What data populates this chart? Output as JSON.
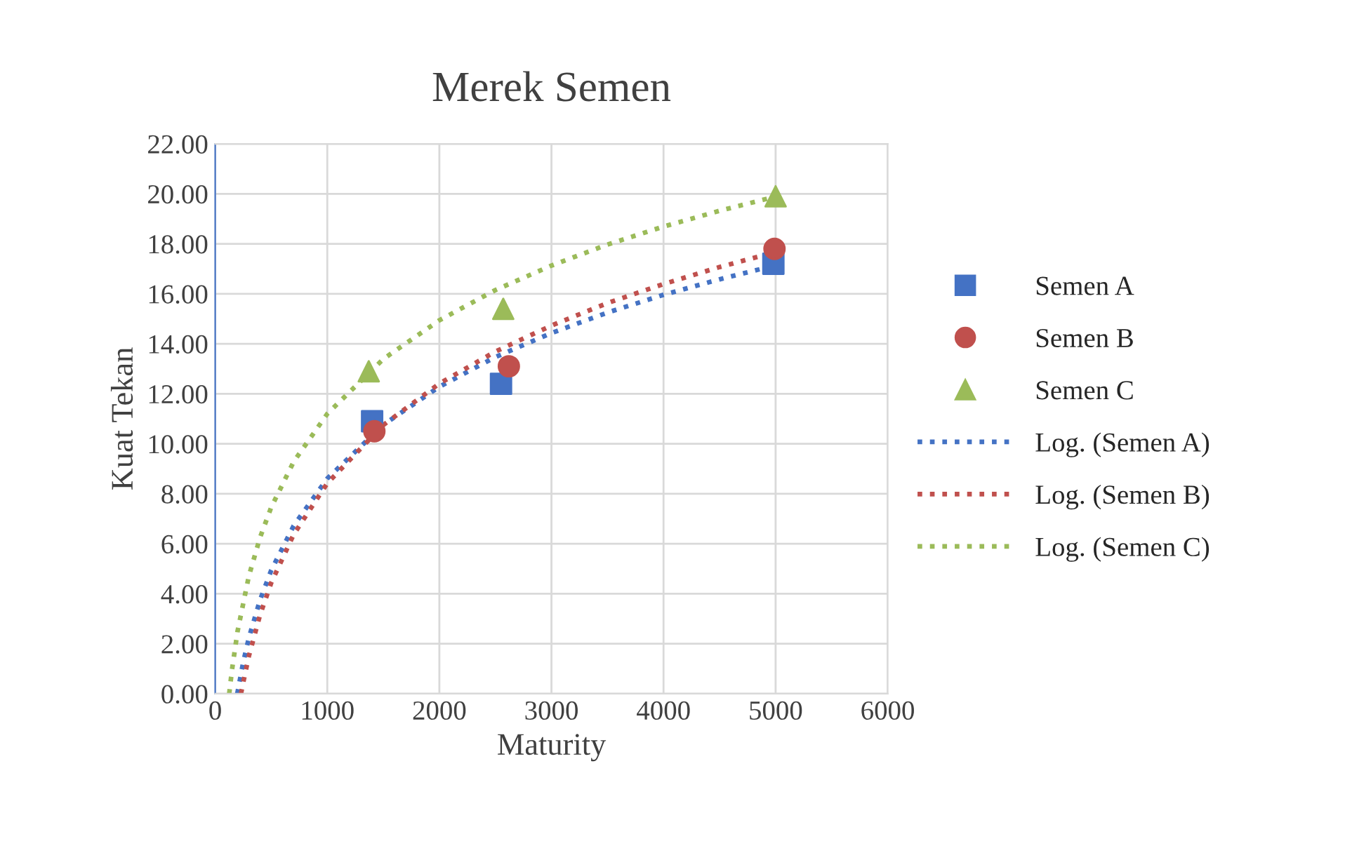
{
  "chart_data": {
    "type": "scatter",
    "title": "Merek Semen",
    "xlabel": "Maturity",
    "ylabel": "Kuat Tekan",
    "xlim": [
      0,
      6000
    ],
    "xticks": [
      0,
      1000,
      2000,
      3000,
      4000,
      5000,
      6000
    ],
    "ylim": [
      0,
      22
    ],
    "yticks": [
      {
        "value": 0,
        "label": "0.00"
      },
      {
        "value": 2,
        "label": "2.00"
      },
      {
        "value": 4,
        "label": "4.00"
      },
      {
        "value": 6,
        "label": "6.00"
      },
      {
        "value": 8,
        "label": "8.00"
      },
      {
        "value": 10,
        "label": "10.00"
      },
      {
        "value": 12,
        "label": "12.00"
      },
      {
        "value": 14,
        "label": "14.00"
      },
      {
        "value": 16,
        "label": "16.00"
      },
      {
        "value": 18,
        "label": "18.00"
      },
      {
        "value": 20,
        "label": "20.00"
      },
      {
        "value": 22,
        "label": "22.00"
      }
    ],
    "grid": true,
    "legend": "right",
    "series": [
      {
        "name": "Semen A",
        "marker": "square",
        "color": "#4472c4",
        "x": [
          1400,
          2550,
          4980
        ],
        "values": [
          10.9,
          12.4,
          17.2
        ]
      },
      {
        "name": "Semen B",
        "marker": "circle",
        "color": "#c0504d",
        "x": [
          1420,
          2620,
          4990
        ],
        "values": [
          10.5,
          13.1,
          17.8
        ]
      },
      {
        "name": "Semen C",
        "marker": "triangle",
        "color": "#9bbb59",
        "x": [
          1370,
          2570,
          5000
        ],
        "values": [
          12.9,
          15.4,
          19.9
        ]
      },
      {
        "name": "Log. (Semen A)",
        "type": "line",
        "marker": "none",
        "line_style": "dotted",
        "color": "#4472c4",
        "x": [
          197,
          250,
          300,
          400,
          500,
          700,
          1000,
          1500,
          2000,
          2500,
          3000,
          3500,
          4000,
          4500,
          5000
        ],
        "values": [
          0,
          1.26,
          2.23,
          3.75,
          4.94,
          6.72,
          8.61,
          10.76,
          12.28,
          13.47,
          14.43,
          15.25,
          15.96,
          16.58,
          17.14
        ]
      },
      {
        "name": "Log. (Semen B)",
        "type": "line",
        "marker": "none",
        "line_style": "dotted",
        "color": "#c0504d",
        "x": [
          230,
          250,
          300,
          400,
          500,
          700,
          1000,
          1500,
          2000,
          2500,
          3000,
          3500,
          4000,
          4500,
          5000
        ],
        "values": [
          0,
          0.45,
          1.5,
          3.15,
          4.44,
          6.37,
          8.42,
          10.75,
          12.41,
          13.69,
          14.73,
          15.63,
          16.39,
          17.07,
          17.67
        ]
      },
      {
        "name": "Log. (Semen C)",
        "type": "line",
        "marker": "none",
        "line_style": "dotted",
        "color": "#9bbb59",
        "x": [
          125,
          150,
          200,
          300,
          400,
          500,
          700,
          1000,
          1500,
          2000,
          2500,
          3000,
          3500,
          4000,
          4500,
          5000
        ],
        "values": [
          0,
          0.96,
          2.51,
          4.7,
          6.25,
          7.46,
          9.28,
          11.2,
          13.39,
          14.94,
          16.15,
          17.13,
          17.97,
          18.69,
          19.32,
          19.89
        ]
      }
    ]
  }
}
